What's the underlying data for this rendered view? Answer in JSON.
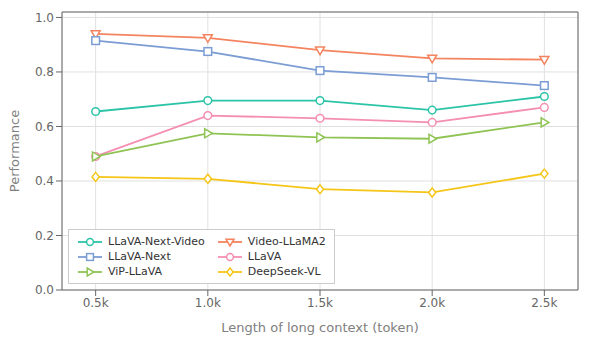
{
  "chart_data": {
    "type": "line",
    "x": [
      0.5,
      1.0,
      1.5,
      2.0,
      2.5
    ],
    "series": [
      {
        "name": "LLaVA-Next-Video",
        "color": "#2cc4a8",
        "marker": "circle",
        "values": [
          0.655,
          0.695,
          0.695,
          0.66,
          0.71
        ]
      },
      {
        "name": "Video-LLaMA2",
        "color": "#f4845f",
        "marker": "triangle-down",
        "values": [
          0.94,
          0.925,
          0.88,
          0.85,
          0.845
        ]
      },
      {
        "name": "LLaVA-Next",
        "color": "#7b9dd4",
        "marker": "square",
        "values": [
          0.915,
          0.875,
          0.805,
          0.78,
          0.75
        ]
      },
      {
        "name": "LLaVA",
        "color": "#f48fb1",
        "marker": "circle",
        "values": [
          0.49,
          0.64,
          0.63,
          0.615,
          0.67
        ]
      },
      {
        "name": "ViP-LLaVA",
        "color": "#8fc454",
        "marker": "triangle-right",
        "values": [
          0.49,
          0.575,
          0.56,
          0.555,
          0.615
        ]
      },
      {
        "name": "DeepSeek-VL",
        "color": "#f5c518",
        "marker": "diamond",
        "values": [
          0.415,
          0.408,
          0.37,
          0.358,
          0.427
        ]
      }
    ],
    "xlabel": "Length of long context (token)",
    "ylabel": "Performance",
    "xlim": [
      0.35,
      2.65
    ],
    "ylim": [
      0.0,
      1.02
    ],
    "xticks": [
      {
        "value": 0.5,
        "label": "0.5k"
      },
      {
        "value": 1.0,
        "label": "1.0k"
      },
      {
        "value": 1.5,
        "label": "1.5k"
      },
      {
        "value": 2.0,
        "label": "2.0k"
      },
      {
        "value": 2.5,
        "label": "2.5k"
      }
    ],
    "yticks": [
      {
        "value": 0,
        "label": "0.0"
      },
      0.2,
      0.4,
      0.6,
      0.8,
      {
        "value": 1,
        "label": "1.0"
      }
    ],
    "grid": true,
    "legend": "lower left"
  }
}
